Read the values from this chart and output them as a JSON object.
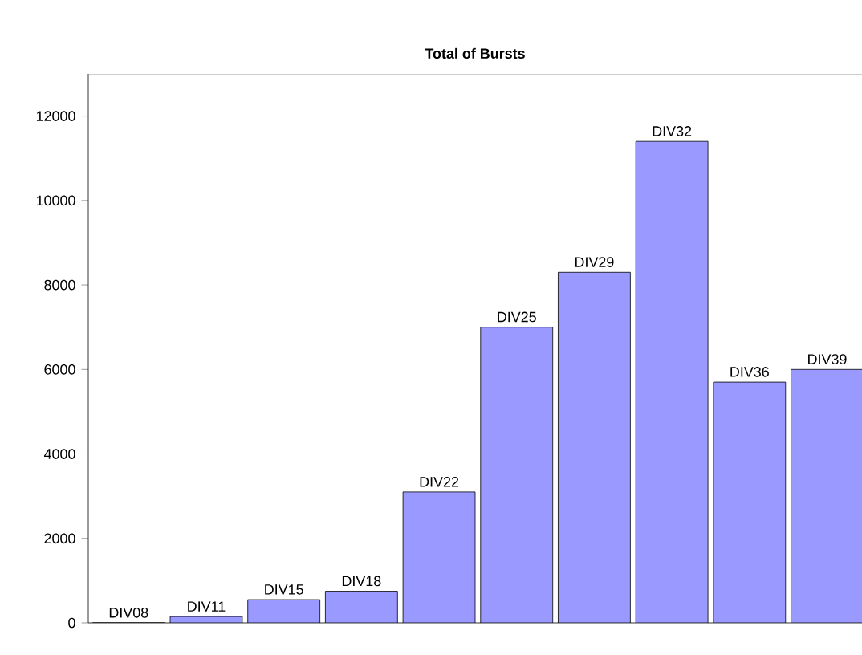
{
  "chart_data": {
    "type": "bar",
    "title": "Total of Bursts",
    "categories": [
      "DIV08",
      "DIV11",
      "DIV15",
      "DIV18",
      "DIV22",
      "DIV25",
      "DIV29",
      "DIV32",
      "DIV36",
      "DIV39"
    ],
    "values": [
      0,
      150,
      550,
      750,
      3100,
      7000,
      8300,
      11400,
      5700,
      6000
    ],
    "color": "#9999ff",
    "ylim": [
      0,
      13000
    ],
    "yticks": [
      0,
      2000,
      4000,
      6000,
      8000,
      10000,
      12000
    ]
  }
}
